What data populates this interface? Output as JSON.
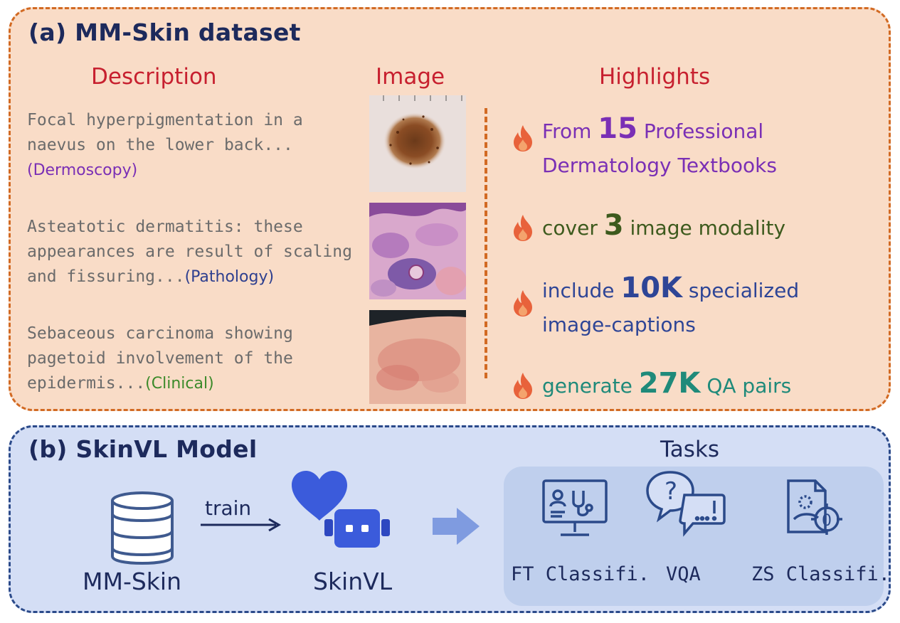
{
  "panel_a": {
    "title": "(a) MM-Skin dataset",
    "headers": {
      "description": "Description",
      "image": "Image",
      "highlights": "Highlights"
    },
    "descriptions": [
      {
        "text": "Focal hyperpigmentation in a naevus on the lower back...",
        "tag": "(Dermoscopy)",
        "tag_color": "#7a2fb5"
      },
      {
        "text": "Asteatotic dermatitis: these appearances are result of scaling and fissuring...",
        "tag": "(Pathology)",
        "tag_color": "#2e3f8f"
      },
      {
        "text": "Sebaceous carcinoma showing pagetoid involvement of the epidermis...",
        "tag": "(Clinical)",
        "tag_color": "#3c8a2a"
      }
    ],
    "highlights": [
      {
        "pre": "From ",
        "num": "15",
        "post": " Professional",
        "line2": "Dermatology Textbooks",
        "color": "#7a2fb5"
      },
      {
        "pre": "cover ",
        "num": "3",
        "post": " image modality",
        "line2": "",
        "color": "#3d5a1d"
      },
      {
        "pre": "include ",
        "num": "10K",
        "post": " specialized",
        "line2": "image-captions",
        "color": "#2e4596"
      },
      {
        "pre": "generate ",
        "num": "27K",
        "post": " QA pairs",
        "line2": "",
        "color": "#1f8a7a"
      }
    ],
    "icons": {
      "highlight": "flame-icon"
    }
  },
  "panel_b": {
    "title": "(b) SkinVL Model",
    "dataset_label": "MM-Skin",
    "arrow_label": "train",
    "model_label": "SkinVL",
    "tasks_title": "Tasks",
    "tasks": [
      {
        "label": "FT Classifi.",
        "icon": "monitor-stethoscope-icon"
      },
      {
        "label": "VQA",
        "icon": "question-speech-icon"
      },
      {
        "label": "ZS Classifi.",
        "icon": "document-target-icon"
      }
    ],
    "colors": {
      "accent": "#3b5bdb",
      "icon_blue": "#2b4a8a"
    }
  }
}
